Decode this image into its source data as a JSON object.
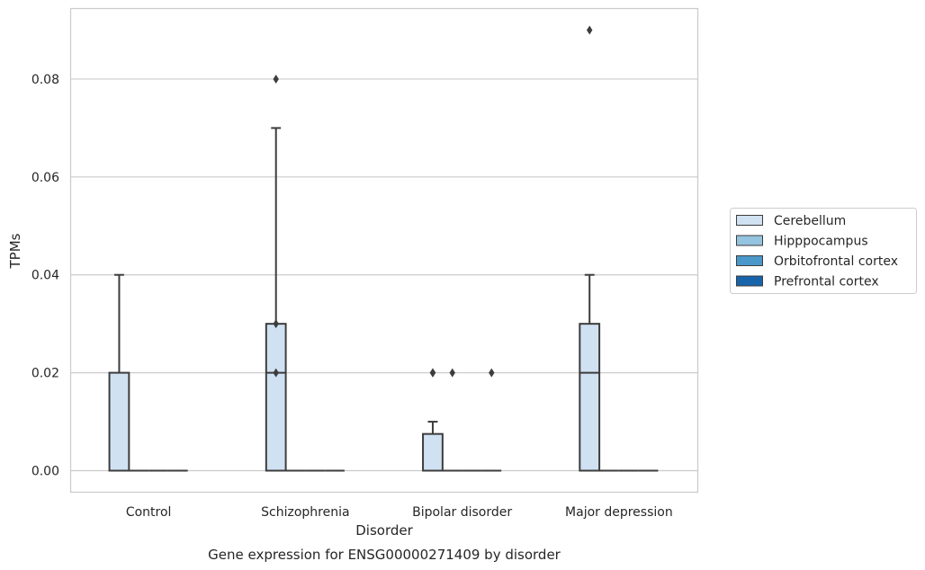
{
  "chart_data": {
    "type": "box",
    "xlabel": "Disorder",
    "ylabel": "TPMs",
    "caption": "Gene expression for ENSG00000271409 by disorder",
    "categories": [
      "Control",
      "Schizophrenia",
      "Bipolar disorder",
      "Major depression"
    ],
    "ylim": [
      -0.0045,
      0.0945
    ],
    "yticks": [
      0.0,
      0.02,
      0.04,
      0.06,
      0.08
    ],
    "ytick_labels": [
      "0.00",
      "0.02",
      "0.04",
      "0.06",
      "0.08"
    ],
    "grid": "horizontal",
    "legend_placement": "right",
    "series": [
      {
        "name": "Cerebellum",
        "color": "#d0e1f2",
        "boxes": [
          {
            "category": "Control",
            "whislo": 0.0,
            "q1": 0.0,
            "med": 0.0,
            "q3": 0.02,
            "whishi": 0.04,
            "fliers": []
          },
          {
            "category": "Schizophrenia",
            "whislo": 0.0,
            "q1": 0.0,
            "med": 0.02,
            "q3": 0.03,
            "whishi": 0.07,
            "fliers": [
              0.02,
              0.03,
              0.08
            ]
          },
          {
            "category": "Bipolar disorder",
            "whislo": 0.0,
            "q1": 0.0,
            "med": 0.0,
            "q3": 0.0075,
            "whishi": 0.01,
            "fliers": [
              0.02,
              0.02,
              0.02
            ]
          },
          {
            "category": "Major depression",
            "whislo": 0.0,
            "q1": 0.0,
            "med": 0.02,
            "q3": 0.03,
            "whishi": 0.04,
            "fliers": [
              0.09
            ]
          }
        ]
      },
      {
        "name": "Hipppocampus",
        "color": "#94c4df",
        "boxes": [
          {
            "category": "Control",
            "whislo": 0.0,
            "q1": 0.0,
            "med": 0.0,
            "q3": 0.0,
            "whishi": 0.0,
            "fliers": []
          },
          {
            "category": "Schizophrenia",
            "whislo": 0.0,
            "q1": 0.0,
            "med": 0.0,
            "q3": 0.0,
            "whishi": 0.0,
            "fliers": []
          },
          {
            "category": "Bipolar disorder",
            "whislo": 0.0,
            "q1": 0.0,
            "med": 0.0,
            "q3": 0.0,
            "whishi": 0.0,
            "fliers": [
              0.02
            ]
          },
          {
            "category": "Major depression",
            "whislo": 0.0,
            "q1": 0.0,
            "med": 0.0,
            "q3": 0.0,
            "whishi": 0.0,
            "fliers": []
          }
        ]
      },
      {
        "name": "Orbitofrontal cortex",
        "color": "#4a98c9",
        "boxes": [
          {
            "category": "Control",
            "whislo": 0.0,
            "q1": 0.0,
            "med": 0.0,
            "q3": 0.0,
            "whishi": 0.0,
            "fliers": []
          },
          {
            "category": "Schizophrenia",
            "whislo": 0.0,
            "q1": 0.0,
            "med": 0.0,
            "q3": 0.0,
            "whishi": 0.0,
            "fliers": []
          },
          {
            "category": "Bipolar disorder",
            "whislo": 0.0,
            "q1": 0.0,
            "med": 0.0,
            "q3": 0.0,
            "whishi": 0.0,
            "fliers": []
          },
          {
            "category": "Major depression",
            "whislo": 0.0,
            "q1": 0.0,
            "med": 0.0,
            "q3": 0.0,
            "whishi": 0.0,
            "fliers": []
          }
        ]
      },
      {
        "name": "Prefrontal cortex",
        "color": "#1764ab",
        "boxes": [
          {
            "category": "Control",
            "whislo": 0.0,
            "q1": 0.0,
            "med": 0.0,
            "q3": 0.0,
            "whishi": 0.0,
            "fliers": []
          },
          {
            "category": "Schizophrenia",
            "whislo": 0.0,
            "q1": 0.0,
            "med": 0.0,
            "q3": 0.0,
            "whishi": 0.0,
            "fliers": []
          },
          {
            "category": "Bipolar disorder",
            "whislo": 0.0,
            "q1": 0.0,
            "med": 0.0,
            "q3": 0.0,
            "whishi": 0.0,
            "fliers": [
              0.02
            ]
          },
          {
            "category": "Major depression",
            "whislo": 0.0,
            "q1": 0.0,
            "med": 0.0,
            "q3": 0.0,
            "whishi": 0.0,
            "fliers": []
          }
        ]
      }
    ]
  }
}
